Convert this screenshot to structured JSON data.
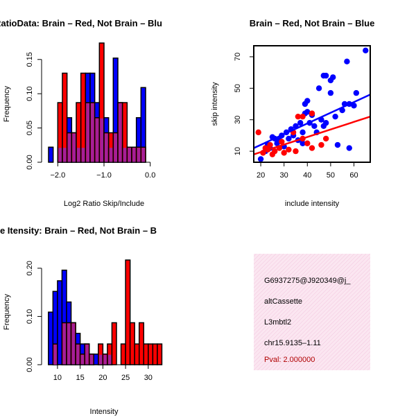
{
  "colors": {
    "brain": "#ff0000",
    "not_brain": "#0000ff",
    "overlap": "#a020a0",
    "axis": "#000000",
    "info_bg": "#fbe3f0",
    "pval": "#b00000"
  },
  "chart_data": [
    {
      "type": "bar",
      "subtype": "histogram-overlay",
      "title": "RatioData: Brain – Red, Not Brain – Blu",
      "xlabel": "Log2 Ratio Skip/Include",
      "ylabel": "Frequency",
      "xlim": [
        -2.35,
        0.35
      ],
      "ylim": [
        0,
        0.17
      ],
      "xticks": [
        -2.0,
        -1.0,
        0.0
      ],
      "xtick_labels": [
        "−2.0",
        "−1.0",
        "0.0"
      ],
      "yticks": [
        0.0,
        0.05,
        0.1,
        0.15
      ],
      "ytick_labels": [
        "0.00",
        "0.05",
        "0.10",
        "0.15"
      ],
      "bin_width": 0.1,
      "bin_starts": [
        -2.3,
        -2.2,
        -2.1,
        -2.0,
        -1.9,
        -1.8,
        -1.7,
        -1.6,
        -1.5,
        -1.4,
        -1.3,
        -1.2,
        -1.1,
        -1.0,
        -0.9,
        -0.8,
        -0.7,
        -0.6,
        -0.5,
        -0.4,
        -0.3,
        -0.2,
        -0.1,
        0.0,
        0.1
      ],
      "series": [
        {
          "name": "Not Brain",
          "color": "blue",
          "values": [
            0,
            0.022,
            0,
            0.022,
            0.022,
            0.065,
            0.043,
            0.022,
            0.022,
            0.13,
            0.13,
            0.087,
            0.065,
            0.065,
            0.022,
            0.152,
            0.087,
            0.022,
            0.022,
            0.022,
            0.065,
            0.109,
            0,
            0,
            0
          ]
        },
        {
          "name": "Brain",
          "color": "red",
          "values": [
            0,
            0,
            0,
            0.087,
            0.13,
            0.043,
            0.043,
            0.087,
            0.13,
            0.087,
            0.087,
            0.065,
            0.174,
            0.043,
            0.043,
            0.043,
            0.087,
            0.087,
            0.022,
            0.022,
            0.022,
            0.022,
            0,
            0,
            0
          ]
        }
      ]
    },
    {
      "type": "scatter",
      "title": "Brain – Red, Not Brain – Blue",
      "xlabel": "include intensity",
      "ylabel": "skip intensity",
      "xlim": [
        17,
        67
      ],
      "ylim": [
        3,
        77
      ],
      "xticks": [
        20,
        30,
        40,
        50,
        60
      ],
      "yticks": [
        10,
        30,
        50,
        70
      ],
      "series": [
        {
          "name": "Not Brain",
          "color": "blue",
          "points": [
            [
              20,
              5
            ],
            [
              22,
              10
            ],
            [
              23,
              14
            ],
            [
              24,
              12
            ],
            [
              25,
              19
            ],
            [
              26,
              18
            ],
            [
              27,
              15
            ],
            [
              28,
              17
            ],
            [
              29,
              20
            ],
            [
              30,
              13
            ],
            [
              31,
              22
            ],
            [
              32,
              18
            ],
            [
              33,
              24
            ],
            [
              34,
              20
            ],
            [
              35,
              26
            ],
            [
              36,
              17
            ],
            [
              37,
              28
            ],
            [
              38,
              22
            ],
            [
              38,
              15
            ],
            [
              39,
              34
            ],
            [
              39,
              40
            ],
            [
              40,
              35
            ],
            [
              40,
              42
            ],
            [
              41,
              28
            ],
            [
              42,
              33
            ],
            [
              43,
              26
            ],
            [
              44,
              22
            ],
            [
              45,
              50
            ],
            [
              46,
              30
            ],
            [
              47,
              26
            ],
            [
              47,
              58
            ],
            [
              48,
              58
            ],
            [
              48,
              28
            ],
            [
              50,
              55
            ],
            [
              50,
              47
            ],
            [
              51,
              57
            ],
            [
              52,
              32
            ],
            [
              53,
              14
            ],
            [
              55,
              36
            ],
            [
              56,
              40
            ],
            [
              57,
              67
            ],
            [
              58,
              12
            ],
            [
              58,
              40
            ],
            [
              60,
              39
            ],
            [
              61,
              47
            ],
            [
              65,
              74
            ]
          ]
        },
        {
          "name": "Brain",
          "color": "red",
          "points": [
            [
              19,
              22
            ],
            [
              21,
              9
            ],
            [
              22,
              12
            ],
            [
              23,
              11
            ],
            [
              24,
              14
            ],
            [
              25,
              8
            ],
            [
              26,
              10
            ],
            [
              28,
              12
            ],
            [
              29,
              16
            ],
            [
              30,
              9
            ],
            [
              32,
              11
            ],
            [
              34,
              22
            ],
            [
              35,
              10
            ],
            [
              36,
              32
            ],
            [
              38,
              18
            ],
            [
              38,
              32
            ],
            [
              40,
              15
            ],
            [
              42,
              34
            ],
            [
              42,
              12
            ],
            [
              46,
              14
            ],
            [
              48,
              18
            ]
          ]
        }
      ],
      "fit_lines": [
        {
          "name": "Not Brain fit",
          "color": "blue",
          "x": [
            17,
            67
          ],
          "y": [
            12,
            46
          ]
        },
        {
          "name": "Brain fit",
          "color": "red",
          "x": [
            17,
            67
          ],
          "y": [
            8,
            32
          ]
        }
      ]
    },
    {
      "type": "bar",
      "subtype": "histogram-overlay",
      "title": "ne Itensity: Brain – Red, Not Brain – B",
      "xlabel": "Intensity",
      "ylabel": "Frequency",
      "xlim": [
        6.5,
        34
      ],
      "ylim": [
        0,
        0.23
      ],
      "xticks": [
        10,
        15,
        20,
        25,
        30
      ],
      "yticks": [
        0.0,
        0.1,
        0.2
      ],
      "ytick_labels": [
        "0.00",
        "0.10",
        "0.20"
      ],
      "bin_width": 1,
      "bin_starts": [
        8,
        9,
        10,
        11,
        12,
        13,
        14,
        15,
        16,
        17,
        18,
        19,
        20,
        21,
        22,
        23,
        24,
        25,
        26,
        27,
        28,
        29,
        30,
        31,
        32
      ],
      "series": [
        {
          "name": "Not Brain",
          "color": "blue",
          "values": [
            0.109,
            0.152,
            0.174,
            0.196,
            0.13,
            0.087,
            0.065,
            0.043,
            0.043,
            0.022,
            0.022,
            0.022,
            0.022,
            0.022,
            0,
            0,
            0,
            0,
            0,
            0,
            0,
            0,
            0,
            0,
            0
          ]
        },
        {
          "name": "Brain",
          "color": "red",
          "values": [
            0,
            0.043,
            0,
            0.087,
            0.087,
            0.087,
            0.043,
            0.022,
            0.043,
            0.022,
            0,
            0.043,
            0.022,
            0.043,
            0.087,
            0,
            0.043,
            0.217,
            0.087,
            0.043,
            0.087,
            0.043,
            0.043,
            0.043,
            0.043
          ]
        }
      ]
    }
  ],
  "info_box": {
    "id": "G6937275@J920349@j_",
    "event_type": "altCassette",
    "gene": "L3mbtl2",
    "location": "chr15.9135–1.11",
    "pval": "Pval: 2.000000"
  }
}
